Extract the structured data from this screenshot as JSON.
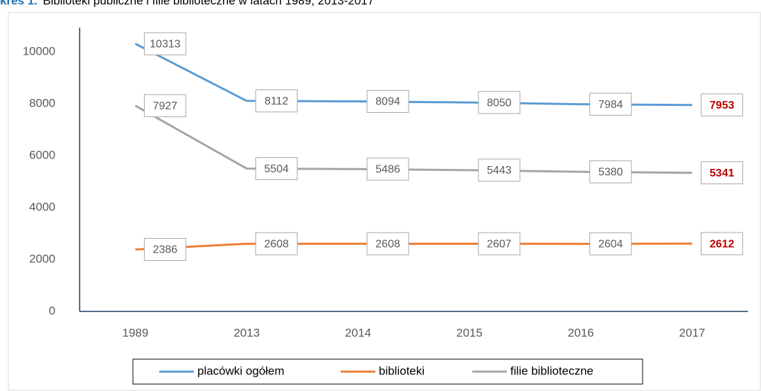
{
  "chart_data": {
    "type": "line",
    "title_prefix": "kres 1.",
    "title": "Biblioteki publiczne i filie biblioteczne w latach 1989, 2013-2017",
    "categories": [
      "1989",
      "2013",
      "2014",
      "2015",
      "2016",
      "2017"
    ],
    "series": [
      {
        "name": "placówki ogółem",
        "color": "#5b9bd5",
        "values": [
          10313,
          8112,
          8094,
          8050,
          7984,
          7953
        ]
      },
      {
        "name": "biblioteki",
        "color": "#ed7d31",
        "values": [
          2386,
          2608,
          2608,
          2607,
          2604,
          2612
        ]
      },
      {
        "name": "filie biblioteczne",
        "color": "#a5a5a5",
        "values": [
          7927,
          5504,
          5486,
          5443,
          5380,
          5341
        ]
      }
    ],
    "ylim": [
      0,
      10000
    ],
    "yticks": [
      0,
      2000,
      4000,
      6000,
      8000,
      10000
    ],
    "grid": false,
    "legend": "bottom",
    "last_label_color": "#c00000"
  }
}
